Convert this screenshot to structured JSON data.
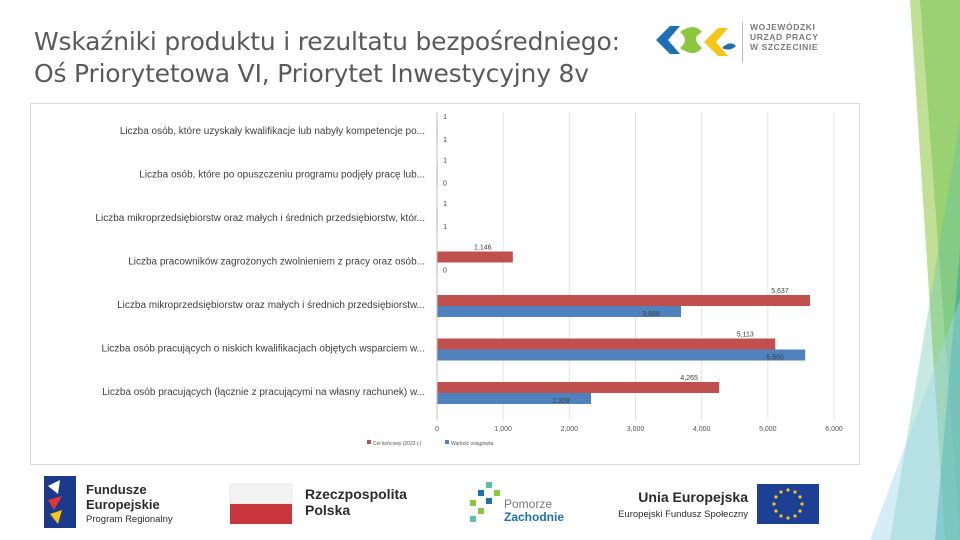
{
  "title_line1": "Wskaźniki produktu i rezultatu bezpośredniego:",
  "title_line2": "Oś Priorytetowa VI, Priorytet Inwestycyjny 8v",
  "header_logo": {
    "line1": "WOJEWÓDZKI",
    "line2": "URZĄD PRACY",
    "line3": "W SZCZECINIE"
  },
  "footer": {
    "fe_line1": "Fundusze",
    "fe_line2": "Europejskie",
    "fe_line3": "Program Regionalny",
    "rp_line1": "Rzeczpospolita",
    "rp_line2": "Polska",
    "pz_line1": "Pomorze",
    "pz_line2": "Zachodnie",
    "ue_line1": "Unia Europejska",
    "ue_line2": "Europejski Fundusz Społeczny"
  },
  "colors": {
    "series_target": "#c0504d",
    "series_achieved": "#4f81bd",
    "deco_green": "#8cc63f",
    "deco_teal": "#5bc2a7"
  },
  "chart_data": {
    "type": "bar",
    "orientation": "horizontal",
    "categories": [
      "Liczba osób, które uzyskały kwalifikacje lub nabyły kompetencje po...",
      "Liczba osób, które po opuszczeniu programu podjęły pracę lub...",
      "Liczba mikroprzedsiębiorstw oraz małych i średnich przedsiębiorstw, któr...",
      "Liczba pracowników zagrożonych zwolnieniem z pracy oraz osób...",
      "Liczba mikroprzedsiębiorstw oraz małych i średnich przedsiębiorstw...",
      "Liczba osób pracujących o niskich kwalifikacjach objętych wsparciem w...",
      "Liczba osób pracujących (łącznie z pracującymi na własny rachunek) w..."
    ],
    "series": [
      {
        "name": "Cel końcowy (2023 r.)",
        "values": [
          1,
          1,
          1,
          1146,
          5637,
          5113,
          4265
        ],
        "labels": [
          "1",
          "1",
          "1",
          "1,146",
          "5,637",
          "5,113",
          "4,265"
        ]
      },
      {
        "name": "Wartość osiągnięta",
        "values": [
          1,
          0,
          1,
          0,
          3688,
          5565,
          2328
        ],
        "labels": [
          "1",
          "0",
          "1",
          "0",
          "3,688",
          "5,565",
          "2,328"
        ]
      }
    ],
    "xlim": [
      0,
      6000
    ],
    "xticks": [
      "0",
      "1,000",
      "2,000",
      "3,000",
      "4,000",
      "5,000",
      "6,000"
    ],
    "grid": true,
    "legend": "bottom-left"
  }
}
